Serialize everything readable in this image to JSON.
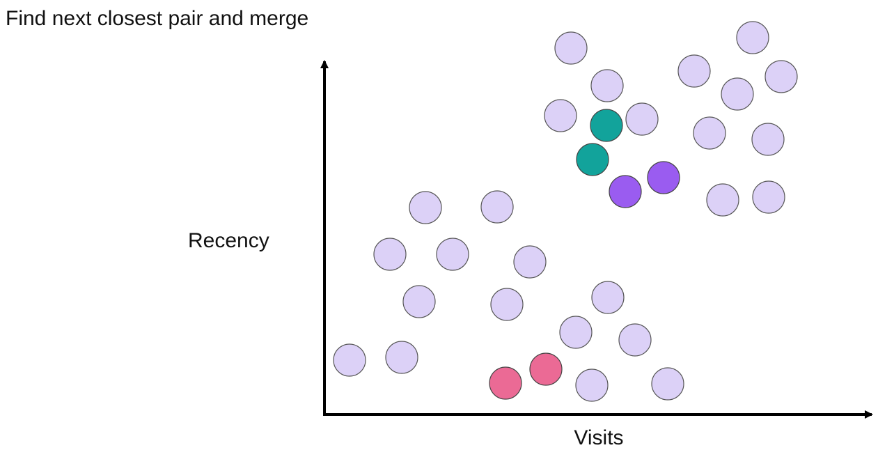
{
  "title": "Find next closest pair and merge",
  "x_axis_label": "Visits",
  "y_axis_label": "Recency"
}
